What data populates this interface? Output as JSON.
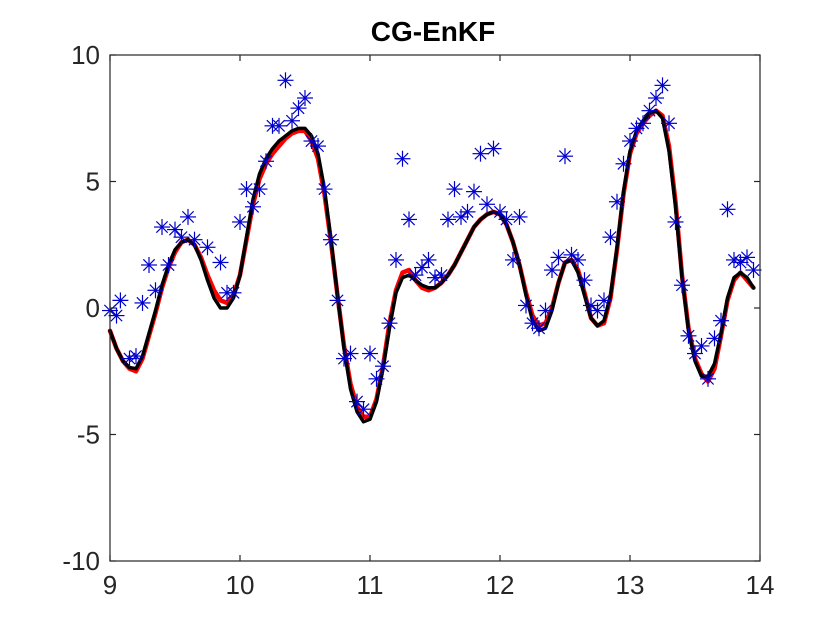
{
  "chart_data": {
    "type": "line",
    "title": "CG-EnKF",
    "xlabel": "",
    "ylabel": "",
    "xlim": [
      9,
      14
    ],
    "ylim": [
      -10,
      10
    ],
    "xticks": [
      "9",
      "10",
      "11",
      "12",
      "13",
      "14"
    ],
    "yticks": [
      "10",
      "5",
      "0",
      "-5",
      "-10"
    ],
    "grid": false,
    "legend": "none",
    "series": [
      {
        "style": "line",
        "color": "#ff0000",
        "x": [
          9.0,
          9.05,
          9.1,
          9.15,
          9.2,
          9.25,
          9.3,
          9.35,
          9.4,
          9.45,
          9.5,
          9.55,
          9.6,
          9.65,
          9.7,
          9.75,
          9.8,
          9.85,
          9.9,
          9.95,
          10.0,
          10.05,
          10.1,
          10.15,
          10.2,
          10.25,
          10.3,
          10.35,
          10.4,
          10.45,
          10.5,
          10.55,
          10.6,
          10.65,
          10.7,
          10.75,
          10.8,
          10.85,
          10.9,
          10.95,
          11.0,
          11.05,
          11.1,
          11.15,
          11.2,
          11.25,
          11.3,
          11.35,
          11.4,
          11.45,
          11.5,
          11.55,
          11.6,
          11.65,
          11.7,
          11.75,
          11.8,
          11.85,
          11.9,
          11.95,
          12.0,
          12.05,
          12.1,
          12.15,
          12.2,
          12.25,
          12.3,
          12.35,
          12.4,
          12.45,
          12.5,
          12.55,
          12.6,
          12.65,
          12.7,
          12.75,
          12.8,
          12.85,
          12.9,
          12.95,
          13.0,
          13.05,
          13.1,
          13.15,
          13.2,
          13.25,
          13.3,
          13.35,
          13.4,
          13.45,
          13.5,
          13.55,
          13.6,
          13.65,
          13.7,
          13.75,
          13.8,
          13.85,
          13.9,
          13.95
        ],
        "y": [
          -0.9,
          -1.6,
          -2.1,
          -2.4,
          -2.5,
          -2.0,
          -1.1,
          -0.2,
          0.8,
          1.6,
          2.2,
          2.6,
          2.7,
          2.5,
          2.0,
          1.3,
          0.7,
          0.3,
          0.2,
          0.5,
          1.3,
          2.7,
          4.1,
          5.1,
          5.7,
          6.1,
          6.4,
          6.7,
          6.9,
          7.0,
          7.0,
          6.6,
          5.9,
          4.5,
          2.6,
          0.5,
          -1.5,
          -3.0,
          -3.9,
          -4.3,
          -4.3,
          -3.6,
          -2.3,
          -0.6,
          0.7,
          1.4,
          1.5,
          1.1,
          0.8,
          0.7,
          0.8,
          1.0,
          1.3,
          1.7,
          2.2,
          2.7,
          3.2,
          3.5,
          3.7,
          3.8,
          3.7,
          3.3,
          2.6,
          1.7,
          0.6,
          -0.3,
          -0.7,
          -0.6,
          0.0,
          1.0,
          1.8,
          1.9,
          1.5,
          0.6,
          -0.4,
          -0.7,
          -0.6,
          0.4,
          2.3,
          4.5,
          6.1,
          6.9,
          7.3,
          7.6,
          7.8,
          7.6,
          6.4,
          4.2,
          1.3,
          -0.8,
          -2.0,
          -2.6,
          -2.9,
          -2.4,
          -1.1,
          0.3,
          1.1,
          1.4,
          1.1,
          0.8
        ]
      },
      {
        "style": "line",
        "color": "#000000",
        "x": [
          9.0,
          9.05,
          9.1,
          9.15,
          9.2,
          9.25,
          9.3,
          9.35,
          9.4,
          9.45,
          9.5,
          9.55,
          9.6,
          9.65,
          9.7,
          9.75,
          9.8,
          9.85,
          9.9,
          9.95,
          10.0,
          10.05,
          10.1,
          10.15,
          10.2,
          10.25,
          10.3,
          10.35,
          10.4,
          10.45,
          10.5,
          10.55,
          10.6,
          10.65,
          10.7,
          10.75,
          10.8,
          10.85,
          10.9,
          10.95,
          11.0,
          11.05,
          11.1,
          11.15,
          11.2,
          11.25,
          11.3,
          11.35,
          11.4,
          11.45,
          11.5,
          11.55,
          11.6,
          11.65,
          11.7,
          11.75,
          11.8,
          11.85,
          11.9,
          11.95,
          12.0,
          12.05,
          12.1,
          12.15,
          12.2,
          12.25,
          12.3,
          12.35,
          12.4,
          12.45,
          12.5,
          12.55,
          12.6,
          12.65,
          12.7,
          12.75,
          12.8,
          12.85,
          12.9,
          12.95,
          13.0,
          13.05,
          13.1,
          13.15,
          13.2,
          13.25,
          13.3,
          13.35,
          13.4,
          13.45,
          13.5,
          13.55,
          13.6,
          13.65,
          13.7,
          13.75,
          13.8,
          13.85,
          13.9,
          13.95
        ],
        "y": [
          -0.9,
          -1.6,
          -2.1,
          -2.35,
          -2.4,
          -1.9,
          -1.0,
          -0.1,
          0.9,
          1.7,
          2.3,
          2.6,
          2.7,
          2.5,
          1.9,
          1.1,
          0.4,
          0.0,
          0.0,
          0.4,
          1.3,
          2.8,
          4.3,
          5.3,
          5.9,
          6.3,
          6.6,
          6.8,
          7.0,
          7.1,
          7.1,
          6.8,
          6.1,
          4.7,
          2.7,
          0.5,
          -1.6,
          -3.2,
          -4.1,
          -4.5,
          -4.4,
          -3.7,
          -2.4,
          -0.8,
          0.6,
          1.2,
          1.3,
          1.1,
          0.9,
          0.8,
          0.8,
          1.0,
          1.3,
          1.7,
          2.2,
          2.7,
          3.2,
          3.5,
          3.7,
          3.8,
          3.7,
          3.3,
          2.6,
          1.7,
          0.5,
          -0.5,
          -0.9,
          -0.8,
          -0.1,
          1.0,
          1.8,
          1.9,
          1.4,
          0.5,
          -0.4,
          -0.7,
          -0.5,
          0.5,
          2.4,
          4.6,
          6.2,
          7.0,
          7.4,
          7.7,
          7.8,
          7.5,
          6.2,
          4.0,
          1.2,
          -0.9,
          -2.1,
          -2.7,
          -2.7,
          -2.2,
          -1.0,
          0.4,
          1.2,
          1.4,
          1.2,
          0.8
        ]
      },
      {
        "style": "marker",
        "marker": "asterisk",
        "color": "#0000cc",
        "x": [
          9.0,
          9.05,
          9.08,
          9.15,
          9.2,
          9.25,
          9.3,
          9.35,
          9.4,
          9.45,
          9.5,
          9.55,
          9.6,
          9.65,
          9.75,
          9.85,
          9.9,
          9.95,
          10.0,
          10.05,
          10.1,
          10.15,
          10.2,
          10.25,
          10.3,
          10.35,
          10.4,
          10.45,
          10.5,
          10.55,
          10.6,
          10.65,
          10.7,
          10.75,
          10.8,
          10.85,
          10.9,
          10.95,
          11.0,
          11.05,
          11.1,
          11.15,
          11.2,
          11.25,
          11.3,
          11.35,
          11.4,
          11.45,
          11.5,
          11.55,
          11.6,
          11.65,
          11.7,
          11.75,
          11.8,
          11.85,
          11.9,
          11.95,
          12.0,
          12.05,
          12.1,
          12.15,
          12.2,
          12.25,
          12.3,
          12.35,
          12.4,
          12.45,
          12.5,
          12.55,
          12.6,
          12.65,
          12.7,
          12.75,
          12.8,
          12.85,
          12.9,
          12.95,
          13.0,
          13.05,
          13.1,
          13.15,
          13.2,
          13.25,
          13.3,
          13.35,
          13.4,
          13.45,
          13.5,
          13.55,
          13.6,
          13.65,
          13.7,
          13.75,
          13.8,
          13.85,
          13.9,
          13.95
        ],
        "y": [
          -0.1,
          -0.3,
          0.3,
          -2.0,
          -1.9,
          0.2,
          1.7,
          0.7,
          3.2,
          1.7,
          3.1,
          2.8,
          3.6,
          2.7,
          2.4,
          1.8,
          0.6,
          0.6,
          3.4,
          4.7,
          4.0,
          4.7,
          5.8,
          7.2,
          7.2,
          9.0,
          7.4,
          7.9,
          8.3,
          6.6,
          6.4,
          4.7,
          2.7,
          0.3,
          -2.0,
          -1.8,
          -3.7,
          -4.0,
          -1.8,
          -2.8,
          -2.3,
          -0.6,
          1.9,
          5.9,
          3.5,
          1.3,
          1.6,
          1.9,
          1.2,
          1.3,
          3.5,
          4.7,
          3.6,
          3.8,
          4.6,
          6.1,
          4.1,
          6.3,
          3.8,
          3.5,
          1.9,
          3.6,
          0.1,
          -0.6,
          -0.8,
          -0.1,
          1.5,
          2.0,
          6.0,
          2.1,
          1.9,
          1.1,
          0.1,
          -0.1,
          0.3,
          2.8,
          4.2,
          5.7,
          6.6,
          7.1,
          7.3,
          7.8,
          8.3,
          8.8,
          7.3,
          3.4,
          0.9,
          -1.1,
          -1.8,
          -1.5,
          -2.8,
          -1.2,
          -0.5,
          3.9,
          1.9,
          1.8,
          2.0,
          1.5
        ]
      }
    ]
  }
}
